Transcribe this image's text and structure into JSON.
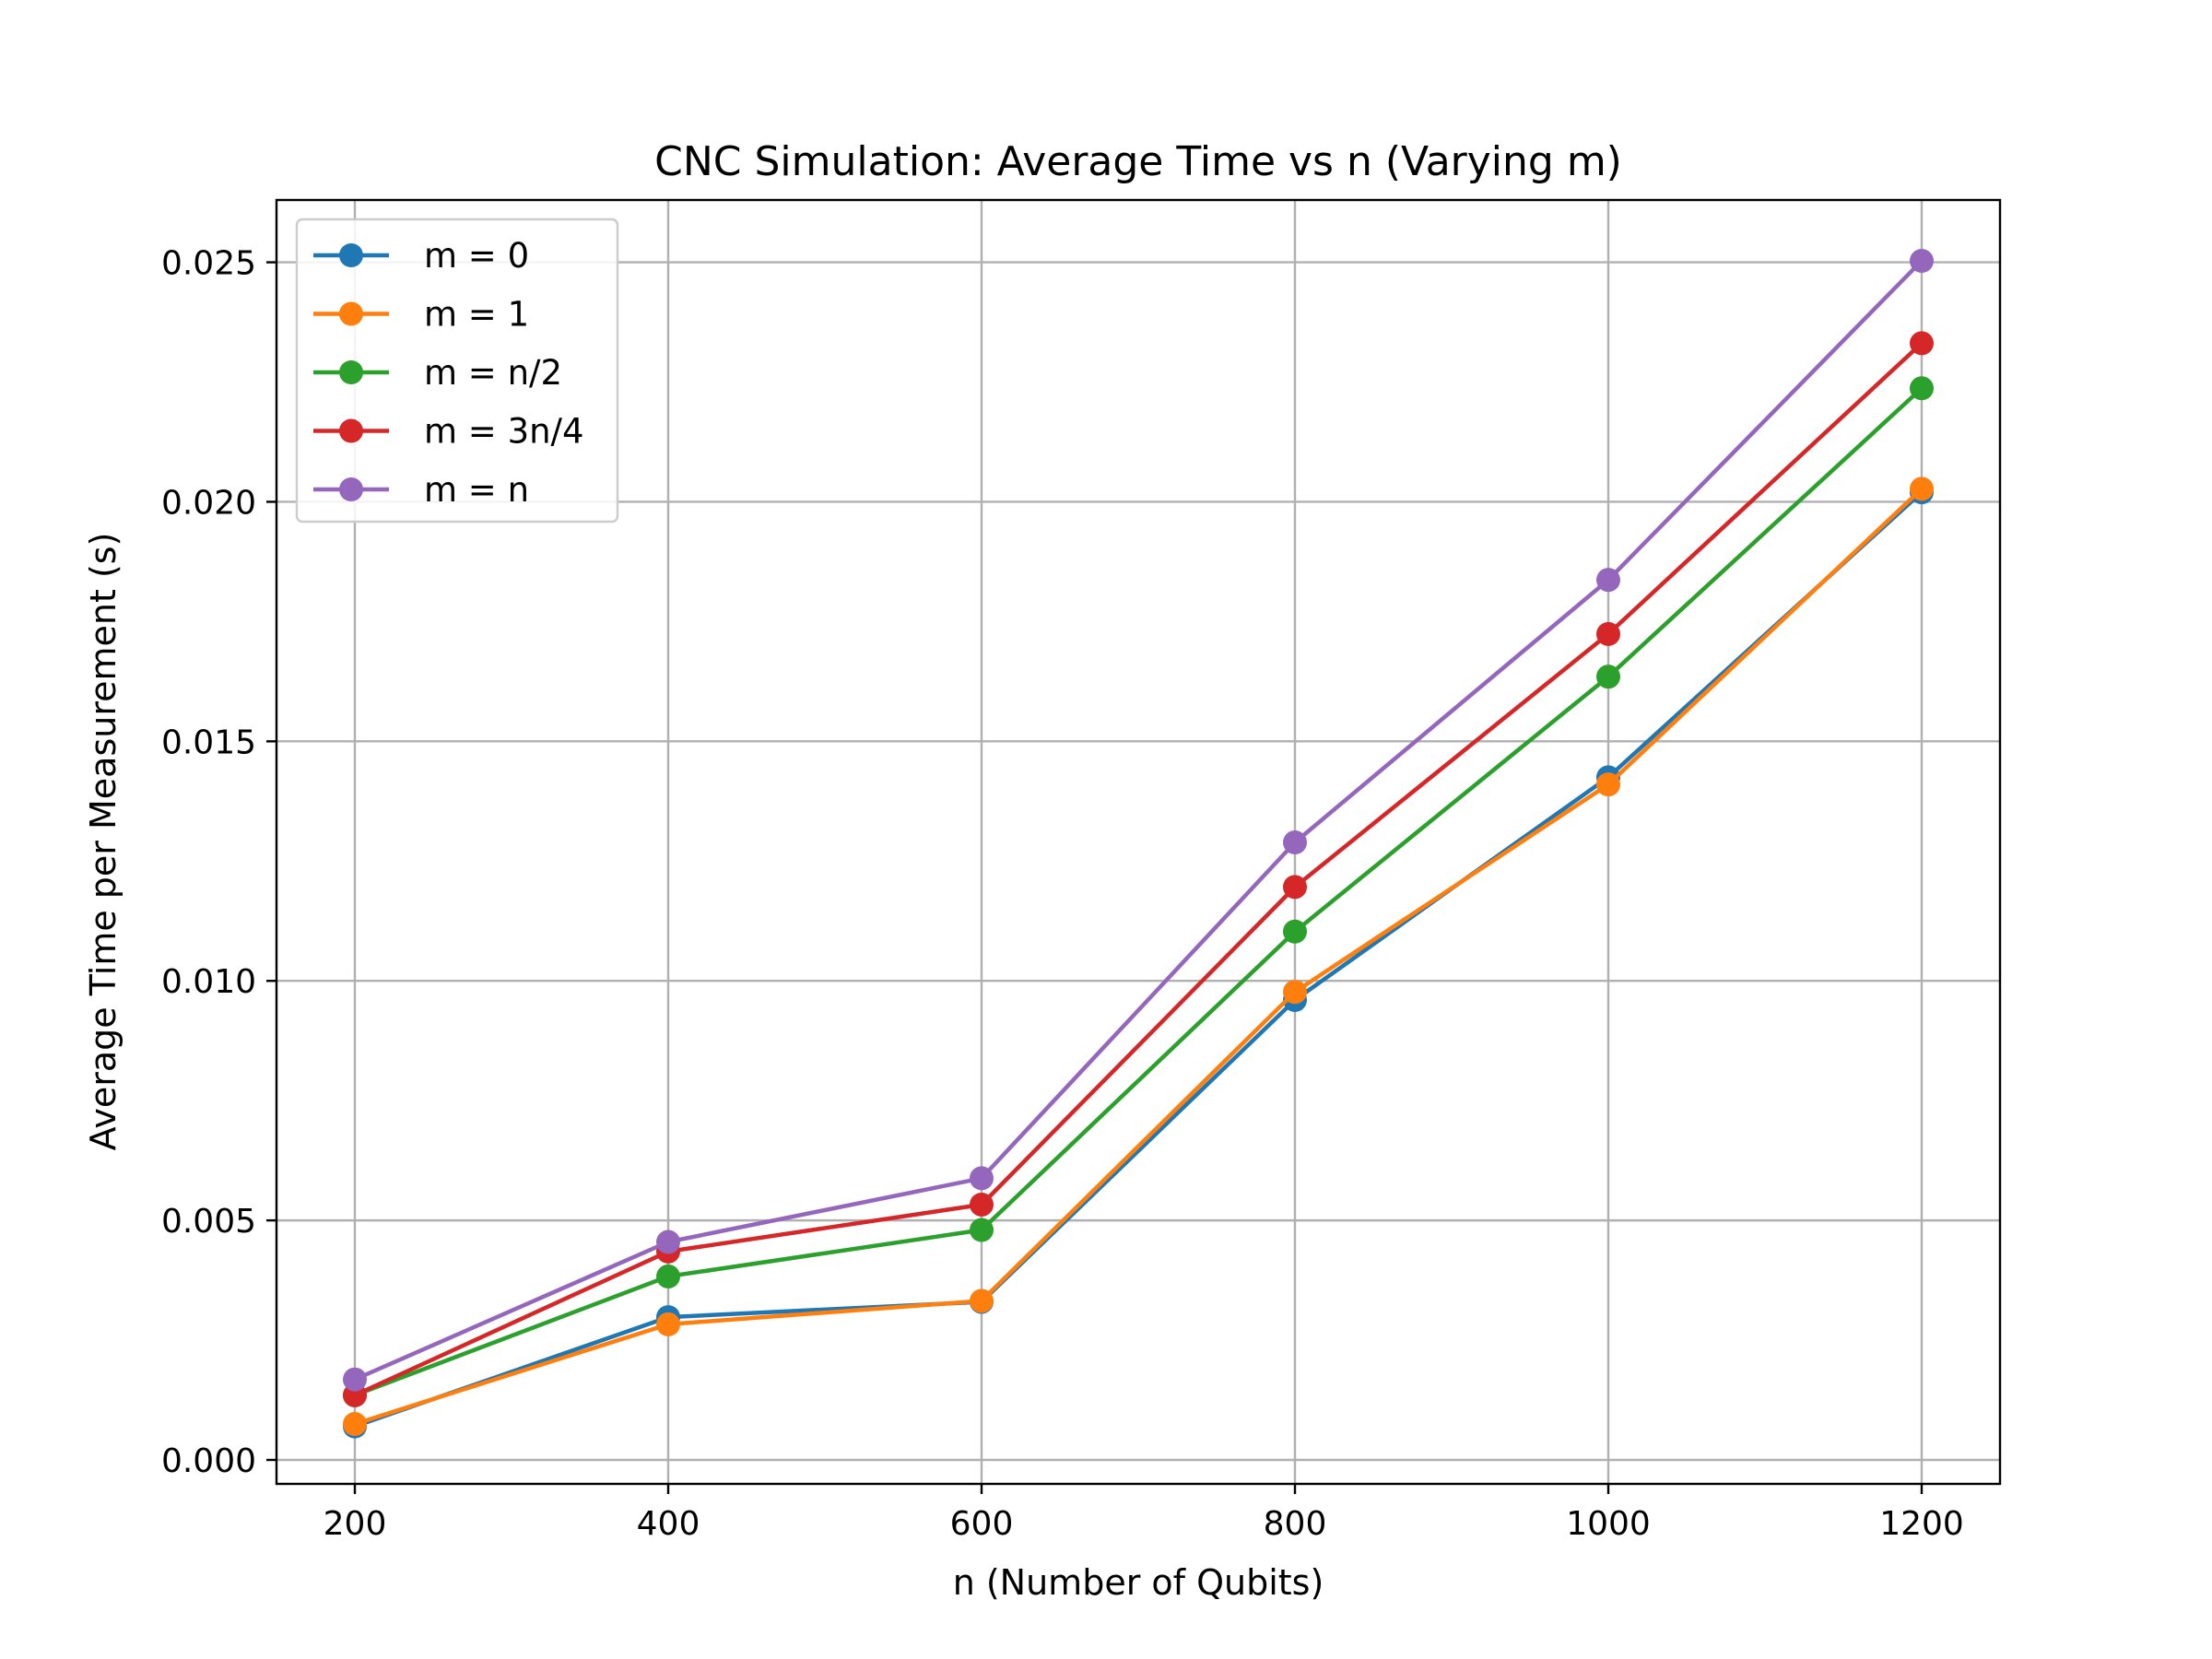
{
  "chart_data": {
    "type": "line",
    "title": "CNC Simulation: Average Time vs n (Varying m)",
    "xlabel": "n (Number of Qubits)",
    "ylabel": "Average Time per Measurement (s)",
    "x": [
      200,
      400,
      600,
      800,
      1000,
      1200
    ],
    "xticks": [
      "200",
      "400",
      "600",
      "800",
      "1000",
      "1200"
    ],
    "yticks": [
      "0.000",
      "0.005",
      "0.010",
      "0.015",
      "0.020",
      "0.025"
    ],
    "xlim": [
      150,
      1250
    ],
    "ylim": [
      -0.0005,
      0.0263
    ],
    "grid": true,
    "legend_position": "upper-left",
    "series": [
      {
        "name": "m = 0",
        "color": "#1f77b4",
        "values": [
          0.0007,
          0.00298,
          0.0033,
          0.0096,
          0.01425,
          0.0202
        ]
      },
      {
        "name": "m = 1",
        "color": "#ff7f0e",
        "values": [
          0.00075,
          0.00283,
          0.00332,
          0.00977,
          0.0141,
          0.02027
        ]
      },
      {
        "name": "m = n/2",
        "color": "#2ca02c",
        "values": [
          0.00135,
          0.00383,
          0.0048,
          0.01103,
          0.01635,
          0.02237
        ]
      },
      {
        "name": "m = 3n/4",
        "color": "#d62728",
        "values": [
          0.00135,
          0.00435,
          0.00533,
          0.01196,
          0.01724,
          0.02331
        ]
      },
      {
        "name": "m = n",
        "color": "#9467bd",
        "values": [
          0.00168,
          0.00455,
          0.00588,
          0.01289,
          0.01837,
          0.02503
        ]
      }
    ]
  }
}
